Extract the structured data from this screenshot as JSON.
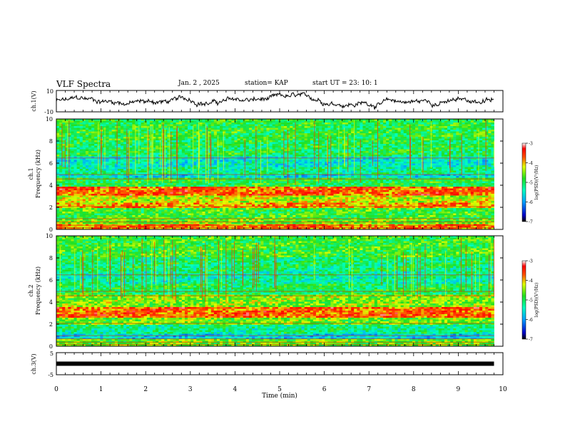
{
  "header": {
    "title": "VLF Spectra",
    "date": "Jan. 2 , 2025",
    "station": "station= KAP",
    "start": "start UT = 23: 10: 1"
  },
  "chart_data": [
    {
      "type": "line",
      "title": "VLF Spectra",
      "ylabel": "ch.1(V)",
      "ylim": [
        -10,
        10
      ],
      "yticks": [
        "10",
        "-10"
      ],
      "xlim": [
        0,
        10
      ],
      "series": [
        {
          "name": "ch.1 waveform",
          "description_values": "noise-like oscillation about 0 V within about -8 to 8 V over 0 to 9.8 min"
        }
      ]
    },
    {
      "type": "heatmap",
      "ylabel_line1": "ch.1",
      "ylabel_line2": "Frequency (kHz)",
      "ylim": [
        0,
        10
      ],
      "yticks": [
        "0",
        "2",
        "4",
        "6",
        "8",
        "10"
      ],
      "xlim": [
        0,
        10
      ],
      "colorbar": {
        "label": "log(PSD)(V²/Hz)",
        "range": [
          -7,
          -3
        ],
        "ticks": [
          "-3",
          "-4",
          "-5",
          "-6",
          "-7"
        ]
      },
      "bands": [
        {
          "from": 0.0,
          "to": 0.5,
          "level": -3.8
        },
        {
          "from": 0.5,
          "to": 1.0,
          "level": -4.6
        },
        {
          "from": 1.0,
          "to": 2.0,
          "level": -4.8
        },
        {
          "from": 2.0,
          "to": 2.4,
          "level": -3.9
        },
        {
          "from": 2.4,
          "to": 3.0,
          "level": -4.3
        },
        {
          "from": 3.0,
          "to": 3.9,
          "level": -3.7
        },
        {
          "from": 3.9,
          "to": 4.6,
          "level": -4.9
        },
        {
          "from": 4.6,
          "to": 5.0,
          "level": -5.6
        },
        {
          "from": 5.0,
          "to": 5.7,
          "level": -5.2
        },
        {
          "from": 5.7,
          "to": 6.6,
          "level": -5.5
        },
        {
          "from": 6.6,
          "to": 8.0,
          "level": -5.0
        },
        {
          "from": 8.0,
          "to": 10.0,
          "level": -4.9
        }
      ]
    },
    {
      "type": "heatmap",
      "ylabel_line1": "ch.2",
      "ylabel_line2": "Frequency (kHz)",
      "ylim": [
        0,
        10
      ],
      "yticks": [
        "0",
        "2",
        "4",
        "6",
        "8",
        "10"
      ],
      "xlim": [
        0,
        10
      ],
      "colorbar": {
        "label": "log(PSD)(V²/Hz)",
        "range": [
          -7,
          -3
        ],
        "ticks": [
          "-3",
          "-4",
          "-5",
          "-6",
          "-7"
        ]
      },
      "bands": [
        {
          "from": 0.0,
          "to": 0.6,
          "level": -4.6
        },
        {
          "from": 0.6,
          "to": 1.2,
          "level": -5.7
        },
        {
          "from": 1.2,
          "to": 2.0,
          "level": -5.2
        },
        {
          "from": 2.0,
          "to": 2.6,
          "level": -4.6
        },
        {
          "from": 2.6,
          "to": 3.6,
          "level": -3.7
        },
        {
          "from": 3.6,
          "to": 4.6,
          "level": -4.5
        },
        {
          "from": 4.6,
          "to": 5.6,
          "level": -5.0
        },
        {
          "from": 5.6,
          "to": 6.8,
          "level": -5.3
        },
        {
          "from": 6.8,
          "to": 8.0,
          "level": -5.1
        },
        {
          "from": 8.0,
          "to": 10.0,
          "level": -4.8
        }
      ]
    },
    {
      "type": "line",
      "ylabel": "ch.3(V)",
      "ylim": [
        -5,
        5
      ],
      "yticks": [
        "5",
        "-5"
      ],
      "xlim": [
        0,
        10
      ],
      "xlabel": "Time (min)",
      "xticks": [
        "0",
        "1",
        "2",
        "3",
        "4",
        "5",
        "6",
        "7",
        "8",
        "9",
        "10"
      ],
      "series": [
        {
          "name": "ch.3",
          "constant_value": 0,
          "data_end": 9.8
        }
      ]
    }
  ]
}
